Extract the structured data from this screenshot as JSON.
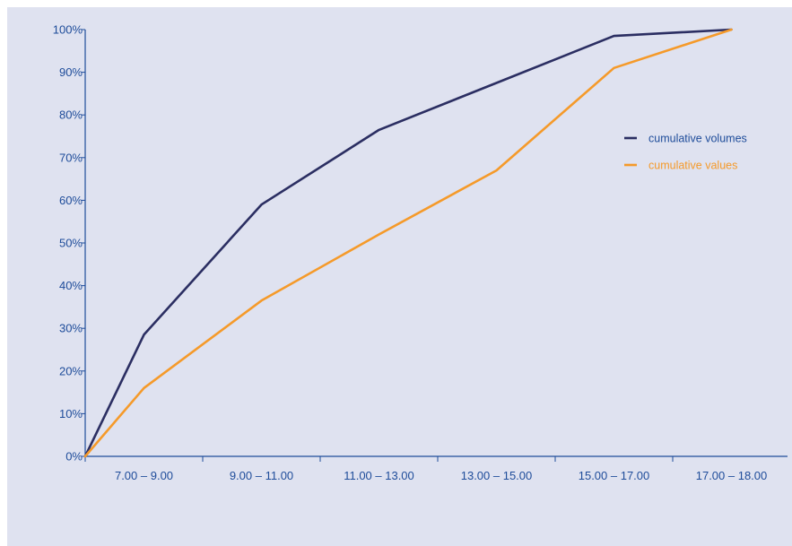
{
  "chart_data": {
    "type": "line",
    "title": "",
    "xlabel": "",
    "ylabel": "",
    "categories": [
      "7.00 – 9.00",
      "9.00 – 11.00",
      "11.00 – 13.00",
      "13.00 – 15.00",
      "15.00 – 17.00",
      "17.00 – 18.00"
    ],
    "y_ticks": [
      "0%",
      "10%",
      "20%",
      "30%",
      "40%",
      "50%",
      "60%",
      "70%",
      "80%",
      "90%",
      "100%"
    ],
    "ylim": [
      0,
      100
    ],
    "grid": false,
    "legend_position": "right",
    "series": [
      {
        "name": "cumulative volumes",
        "color": "#2b2e62",
        "points": [
          [
            0,
            0
          ],
          [
            0.5,
            28.5
          ],
          [
            1.5,
            59
          ],
          [
            2.5,
            76.5
          ],
          [
            3.5,
            87.5
          ],
          [
            4.5,
            98.5
          ],
          [
            5.5,
            100
          ]
        ]
      },
      {
        "name": "cumulative values",
        "color": "#f59a2a",
        "points": [
          [
            0,
            0
          ],
          [
            0.5,
            16
          ],
          [
            1.5,
            36.5
          ],
          [
            2.5,
            52
          ],
          [
            3.5,
            67
          ],
          [
            4.5,
            91
          ],
          [
            5.5,
            100
          ]
        ]
      }
    ]
  },
  "colors": {
    "panel_background": "#dfe2f0",
    "axis": "#1e4c9a",
    "tick_label": "#1e4c9a"
  }
}
